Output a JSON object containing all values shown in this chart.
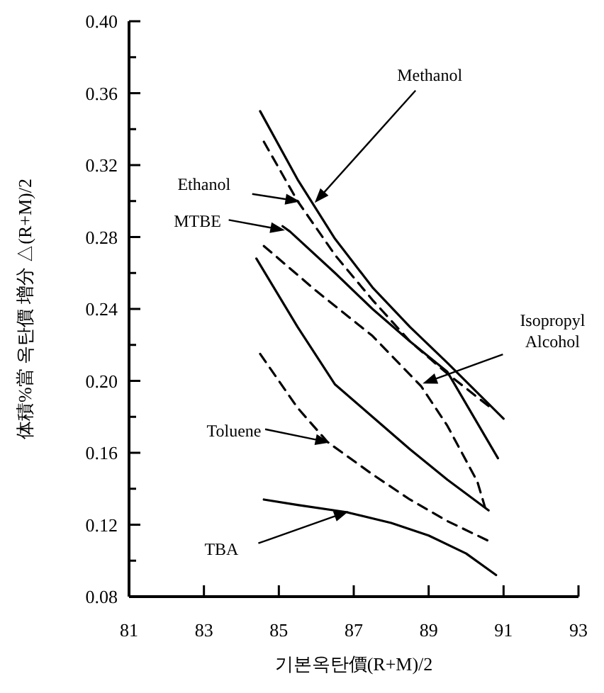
{
  "chart_data": {
    "type": "line",
    "xlabel": "기본옥탄價(R+M)/2",
    "ylabel": "体積%當 옥탄價 增分 △(R+M)/2",
    "xlim": [
      81,
      93
    ],
    "xticks": [
      81,
      83,
      85,
      87,
      89,
      91,
      93
    ],
    "ylim": [
      0.08,
      0.4
    ],
    "yticks": [
      "0.08",
      {
        "value": 0.1,
        "label": null
      },
      {
        "value": 0.12,
        "label": "0.12"
      },
      {
        "value": 0.14,
        "label": null
      },
      {
        "value": 0.16,
        "label": "0.16"
      },
      {
        "value": 0.18,
        "label": null
      },
      {
        "value": 0.2,
        "label": "0.20"
      },
      {
        "value": 0.22,
        "label": null
      },
      {
        "value": 0.24,
        "label": "0.24"
      },
      {
        "value": 0.26,
        "label": null
      },
      {
        "value": 0.28,
        "label": "0.28"
      },
      {
        "value": 0.3,
        "label": null
      },
      {
        "value": 0.32,
        "label": "0.32"
      },
      {
        "value": 0.34,
        "label": null
      },
      {
        "value": 0.36,
        "label": "0.36"
      },
      {
        "value": 0.38,
        "label": null
      },
      {
        "value": 0.4,
        "label": "0.40"
      }
    ],
    "grid": false,
    "marker": "none",
    "series": [
      {
        "color": "#000000",
        "line_style": "solid",
        "x": [
          84.5,
          85.5,
          86.5,
          87.5,
          88.5,
          89.5,
          91.0
        ],
        "values": [
          0.35,
          0.312,
          0.279,
          0.252,
          0.23,
          0.21,
          0.179
        ]
      },
      {
        "color": "#000000",
        "line_style": "dashed",
        "x": [
          84.6,
          85.5,
          86.5,
          87.5,
          88.5,
          89.5,
          90.6
        ],
        "values": [
          0.333,
          0.3,
          0.27,
          0.245,
          0.222,
          0.204,
          0.186
        ]
      },
      {
        "color": "#000000",
        "line_style": "solid",
        "x": [
          85.1,
          85.3,
          86.5,
          87.5,
          88.5,
          89.5,
          90.85
        ],
        "values": [
          0.286,
          0.283,
          0.26,
          0.24,
          0.222,
          0.205,
          0.157
        ]
      },
      {
        "color": "#000000",
        "line_style": "dashed",
        "x": [
          84.6,
          86.0,
          87.5,
          88.8,
          89.5,
          90.3,
          90.5
        ],
        "values": [
          0.275,
          0.25,
          0.225,
          0.197,
          0.175,
          0.144,
          0.13
        ]
      },
      {
        "color": "#000000",
        "line_style": "solid",
        "x": [
          84.4,
          85.5,
          86.5,
          87.5,
          88.5,
          89.5,
          90.6
        ],
        "values": [
          0.268,
          0.23,
          0.198,
          0.18,
          0.162,
          0.145,
          0.128
        ]
      },
      {
        "color": "#000000",
        "line_style": "dashed",
        "x": [
          84.5,
          85.5,
          86.3,
          87.5,
          88.5,
          89.5,
          90.6
        ],
        "values": [
          0.215,
          0.185,
          0.166,
          0.148,
          0.134,
          0.122,
          0.111
        ]
      },
      {
        "color": "#000000",
        "line_style": "solid",
        "x": [
          84.6,
          85.5,
          86.8,
          88.0,
          89.0,
          90.0,
          90.8
        ],
        "values": [
          0.134,
          0.131,
          0.127,
          0.121,
          0.114,
          0.104,
          0.092
        ]
      }
    ],
    "annotations": [
      {
        "text": "Methanol",
        "x": 86.0,
        "y": 0.3
      },
      {
        "text": "Ethanol",
        "x": 85.5,
        "y": 0.3
      },
      {
        "text": "MTBE",
        "x": 85.1,
        "y": 0.284
      },
      {
        "text": "Isopropyl\nAlcohol",
        "x": 88.9,
        "y": 0.199
      },
      {
        "text": "Toluene",
        "x": 86.3,
        "y": 0.166
      },
      {
        "text": "TBA",
        "x": 86.8,
        "y": 0.127
      }
    ]
  }
}
